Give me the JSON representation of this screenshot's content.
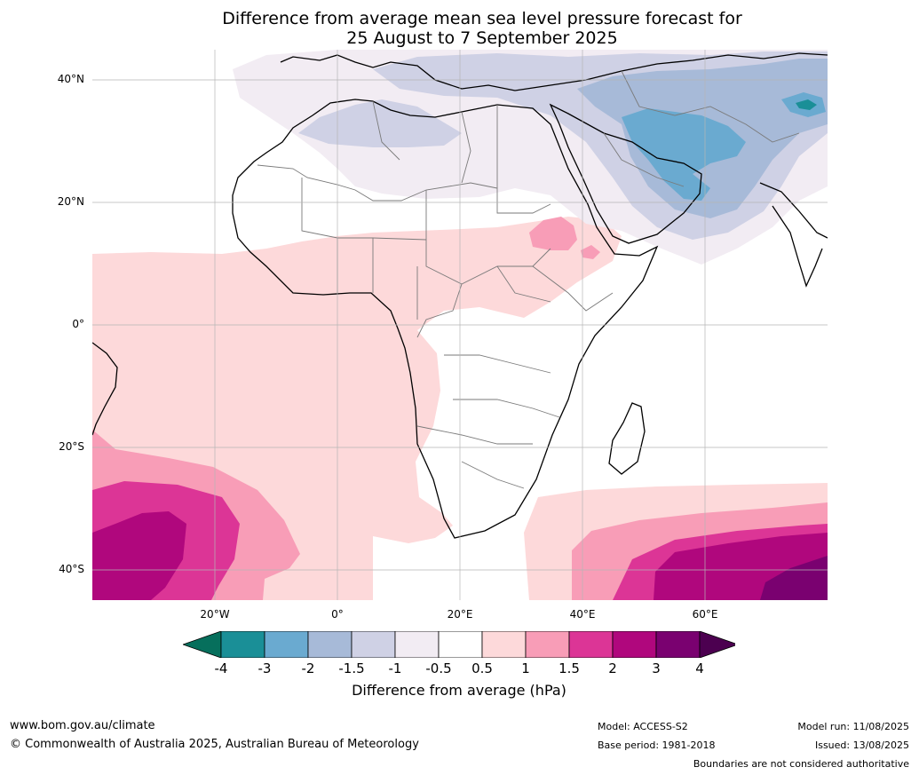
{
  "title": {
    "line1": "Difference from average mean sea level pressure forecast for",
    "line2": "25 August to 7 September 2025"
  },
  "axes": {
    "lat_labels": [
      "40°N",
      "20°N",
      "0°",
      "20°S",
      "40°S"
    ],
    "lon_labels": [
      "20°W",
      "0°",
      "20°E",
      "40°E",
      "60°E"
    ]
  },
  "colorbar": {
    "ticks": [
      "-4",
      "-3",
      "-2",
      "-1.5",
      "-1",
      "-0.5",
      "0.5",
      "1",
      "1.5",
      "2",
      "3",
      "4"
    ],
    "colors": [
      "#066f5c",
      "#1a8f97",
      "#6aaad0",
      "#a7bad8",
      "#cfd1e5",
      "#f2ecf3",
      "#ffffff",
      "#fdd9da",
      "#f89db7",
      "#dc3596",
      "#b0077d",
      "#7a0170",
      "#4c0050"
    ],
    "label": "Difference from average (hPa)"
  },
  "footer": {
    "website": "www.bom.gov.au/climate",
    "copyright": "© Commonwealth of Australia 2025, Australian Bureau of Meteorology",
    "model": "Model: ACCESS-S2",
    "base_period": "Base period: 1981-2018",
    "model_run": "Model run: 11/08/2025",
    "issued": "Issued: 13/08/2025",
    "disclaimer": "Boundaries are not considered authoritative"
  }
}
